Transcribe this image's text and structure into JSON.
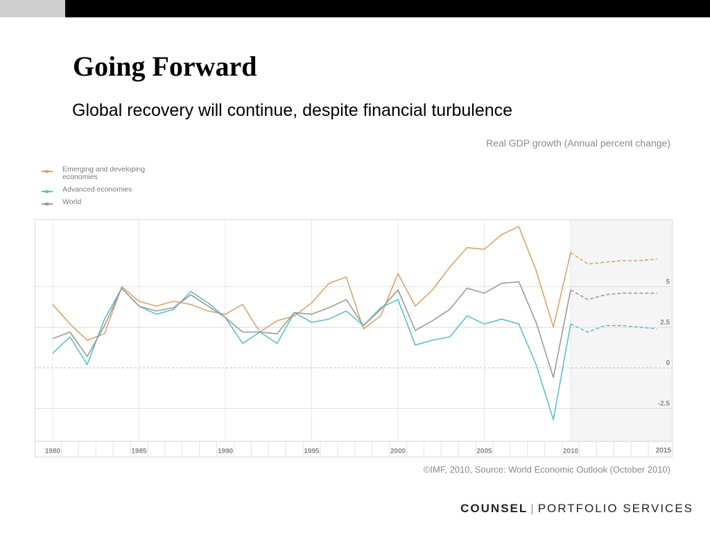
{
  "slide": {
    "title": "Going Forward",
    "subtitle": "Global recovery will continue, despite financial turbulence",
    "source": "©IMF, 2010, Source: World Economic Outlook (October 2010)",
    "brand_bold": "COUNSEL",
    "brand_sep": "|",
    "brand_light": "PORTFOLIO SERVICES"
  },
  "colors": {
    "emerging": "#d9a469",
    "advanced": "#5bc0cf",
    "world": "#9a9a9a",
    "grid": "#dddddd",
    "forecast_bg": "#f5f5f5"
  },
  "chart_data": {
    "type": "line",
    "title": "Real GDP growth (Annual percent change)",
    "xlabel": "",
    "ylabel": "",
    "x": [
      1980,
      1981,
      1982,
      1983,
      1984,
      1985,
      1986,
      1987,
      1988,
      1989,
      1990,
      1991,
      1992,
      1993,
      1994,
      1995,
      1996,
      1997,
      1998,
      1999,
      2000,
      2001,
      2002,
      2003,
      2004,
      2005,
      2006,
      2007,
      2008,
      2009,
      2010,
      2011,
      2012,
      2013,
      2014,
      2015
    ],
    "x_tick_labels": [
      "1980",
      "1985",
      "1990",
      "1995",
      "2000",
      "2005",
      "2010",
      "2015"
    ],
    "y_tick_labels": [
      "5",
      "2.5",
      "0",
      "-2.5"
    ],
    "ylim": [
      -4.5,
      9.0
    ],
    "forecast_start": 2010,
    "legend_position": "top-left",
    "series": [
      {
        "name": "Emerging and developing economies",
        "color": "#d9a469",
        "values": [
          3.9,
          2.7,
          1.7,
          2.1,
          5.0,
          4.1,
          3.8,
          4.1,
          3.9,
          3.5,
          3.3,
          3.9,
          2.2,
          2.9,
          3.2,
          4.0,
          5.2,
          5.6,
          2.4,
          3.2,
          5.8,
          3.8,
          4.8,
          6.2,
          7.4,
          7.3,
          8.2,
          8.7,
          6.0,
          2.5,
          7.1,
          6.4,
          6.5,
          6.6,
          6.6,
          6.7
        ]
      },
      {
        "name": "Advanced economies",
        "color": "#5bc0cf",
        "values": [
          0.9,
          1.9,
          0.2,
          3.0,
          4.9,
          3.8,
          3.3,
          3.6,
          4.7,
          4.0,
          3.1,
          1.5,
          2.2,
          1.5,
          3.4,
          2.8,
          3.0,
          3.5,
          2.6,
          3.7,
          4.2,
          1.4,
          1.7,
          1.9,
          3.2,
          2.7,
          3.0,
          2.7,
          0.2,
          -3.2,
          2.7,
          2.2,
          2.6,
          2.6,
          2.5,
          2.4
        ]
      },
      {
        "name": "World",
        "color": "#9a9a9a",
        "values": [
          1.8,
          2.2,
          0.7,
          2.6,
          4.9,
          3.8,
          3.5,
          3.7,
          4.5,
          3.8,
          3.1,
          2.2,
          2.2,
          2.1,
          3.4,
          3.3,
          3.7,
          4.2,
          2.6,
          3.6,
          4.8,
          2.3,
          2.9,
          3.6,
          4.9,
          4.6,
          5.2,
          5.3,
          2.8,
          -0.6,
          4.8,
          4.2,
          4.5,
          4.6,
          4.6,
          4.6
        ]
      }
    ]
  }
}
